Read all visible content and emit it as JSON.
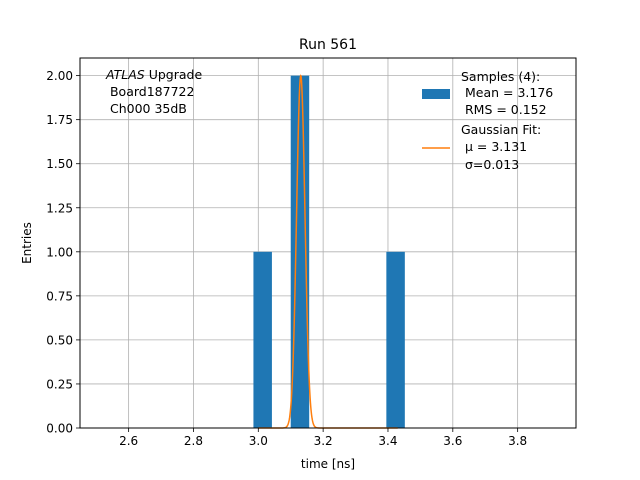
{
  "chart_data": {
    "type": "bar",
    "title": "Run 561",
    "xlabel": "time [ns]",
    "ylabel": "Entries",
    "xlim": [
      2.45,
      3.98
    ],
    "ylim": [
      0,
      2.1
    ],
    "x_ticks": [
      2.6,
      2.8,
      3.0,
      3.2,
      3.4,
      3.6,
      3.8
    ],
    "y_ticks": [
      0.0,
      0.25,
      0.5,
      0.75,
      1.0,
      1.25,
      1.5,
      1.75,
      2.0
    ],
    "grid": true,
    "bar_color": "#1f77b4",
    "fit_color": "#ff7f0e",
    "bars": [
      {
        "x0": 2.985,
        "x1": 3.042,
        "value": 1
      },
      {
        "x0": 3.1,
        "x1": 3.157,
        "value": 2
      },
      {
        "x0": 3.395,
        "x1": 3.452,
        "value": 1
      }
    ],
    "fit": {
      "mu": 3.131,
      "sigma": 0.013,
      "amplitude": 2.0
    },
    "annotation": {
      "italic": "ATLAS",
      "rest": " Upgrade",
      "line2": " Board187722",
      "line3": " Ch000 35dB"
    },
    "legend": {
      "position": "upper-right",
      "samples": [
        "Samples (4):",
        " Mean = 3.176",
        " RMS = 0.152"
      ],
      "fit": [
        "Gaussian Fit:",
        " μ = 3.131",
        " σ=0.013"
      ]
    }
  }
}
